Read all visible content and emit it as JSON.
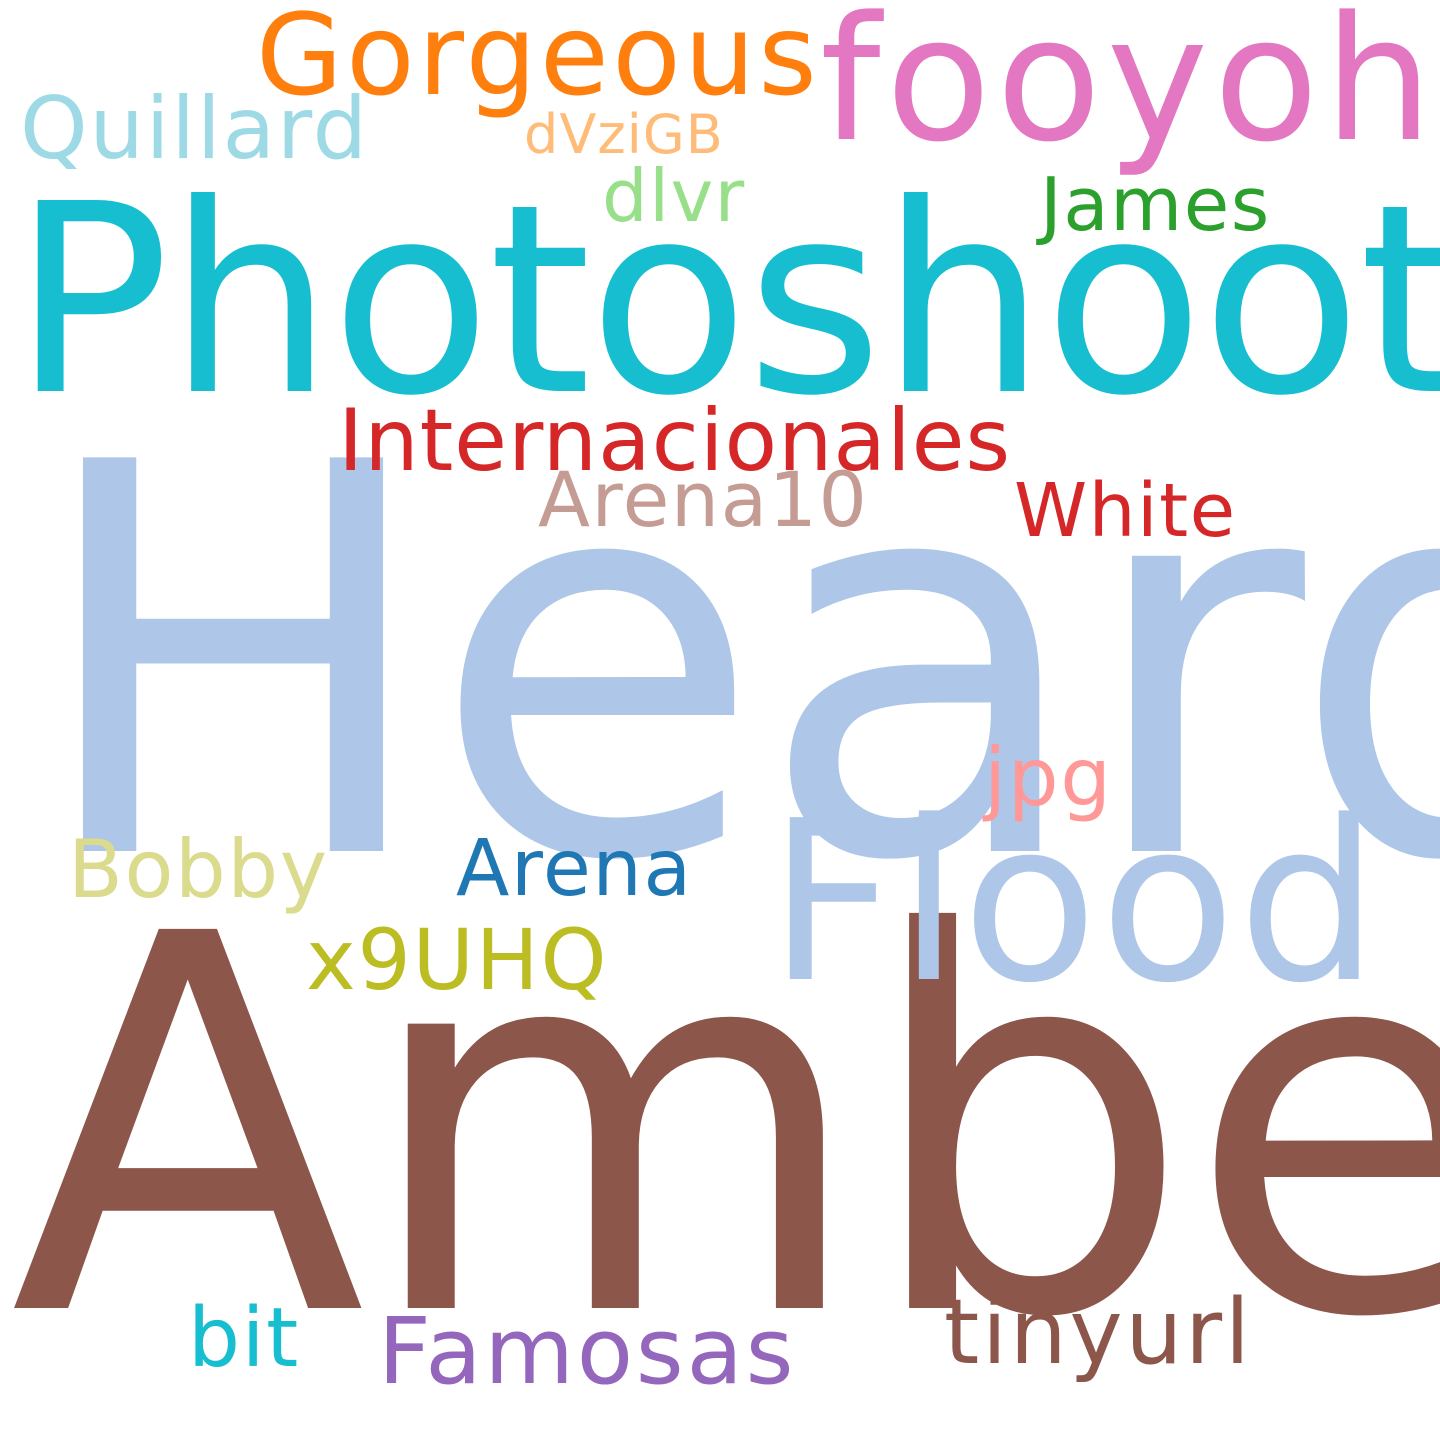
{
  "words": {
    "heard": {
      "text": "Heard",
      "color": "#aec7e8"
    },
    "amber": {
      "text": "Amber",
      "color": "#8c564b"
    },
    "photoshoot": {
      "text": "Photoshoot",
      "color": "#17becf"
    },
    "flood": {
      "text": "Flood",
      "color": "#aec7e8"
    },
    "fooyoh": {
      "text": "fooyoh",
      "color": "#e377c2"
    },
    "gorgeous": {
      "text": "Gorgeous",
      "color": "#ff7f0e"
    },
    "internacionales": {
      "text": "Internacionales",
      "color": "#d62728"
    },
    "quillard": {
      "text": "Quillard",
      "color": "#9edae5"
    },
    "arena10": {
      "text": "Arena10",
      "color": "#c49c94"
    },
    "white": {
      "text": "White",
      "color": "#d62728"
    },
    "dvzigb": {
      "text": "dVziGB",
      "color": "#ffbb78"
    },
    "dlvr": {
      "text": "dlvr",
      "color": "#98df8a"
    },
    "james": {
      "text": "James",
      "color": "#2ca02c"
    },
    "jpg": {
      "text": "jpg",
      "color": "#ff9896"
    },
    "bobby": {
      "text": "Bobby",
      "color": "#dbdb8d"
    },
    "arena": {
      "text": "Arena",
      "color": "#1f77b4"
    },
    "x9uhq": {
      "text": "x9UHQ",
      "color": "#bcbd22"
    },
    "tinyurl": {
      "text": "tinyurl",
      "color": "#8c564b"
    },
    "famosas": {
      "text": "Famosas",
      "color": "#9467bd"
    },
    "bit": {
      "text": "bit",
      "color": "#17becf"
    }
  }
}
